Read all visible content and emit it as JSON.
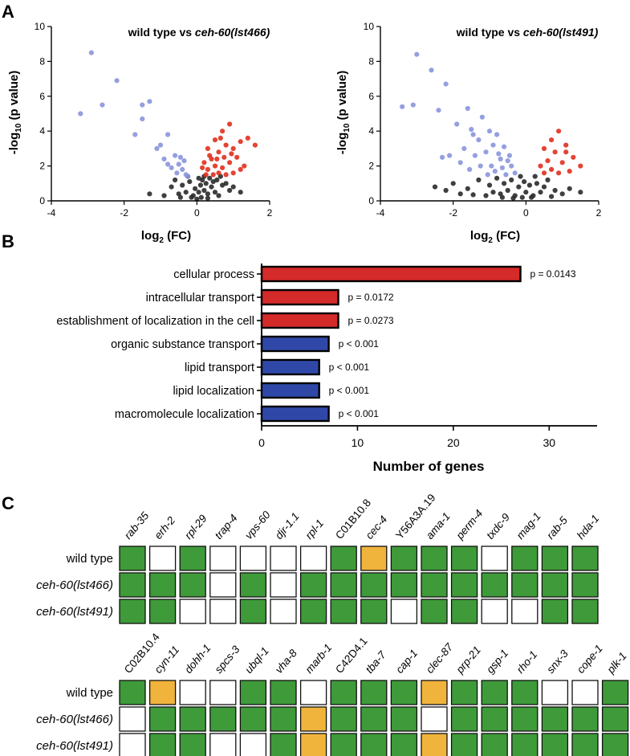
{
  "panels": {
    "a": "A",
    "b": "B",
    "c": "C"
  },
  "colors": {
    "up": "#e0301e",
    "down": "#8a95dd",
    "ns": "#2a2a2a",
    "bar_red": "#d42a2a",
    "bar_blue": "#2f48a8",
    "grid_green": "#3f9a3a",
    "grid_orange": "#f0b43c",
    "grid_white": "#ffffff"
  },
  "chart_data": [
    {
      "type": "scatter",
      "id": "volcano_lst466",
      "title_prefix": "wild type vs ",
      "title_italic": "ceh-60(lst466)",
      "xlabel_base": "log",
      "xlabel_sub": "2",
      "xlabel_rest": " (FC)",
      "ylabel_base": "-log",
      "ylabel_sub": "10",
      "ylabel_rest": " (p value)",
      "xlim": [
        -4,
        2
      ],
      "ylim": [
        0,
        10
      ],
      "xticks": [
        -4,
        -2,
        0,
        2
      ],
      "yticks": [
        0,
        2,
        4,
        6,
        8,
        10
      ],
      "highlight_down": [
        [
          -2.9,
          8.5
        ],
        [
          -2.2,
          6.9
        ],
        [
          -3.2,
          5.0
        ],
        [
          -2.6,
          5.5
        ],
        [
          -1.5,
          5.5
        ],
        [
          -1.3,
          5.7
        ],
        [
          -1.7,
          3.8
        ],
        [
          -1.5,
          4.7
        ],
        [
          -1.0,
          3.2
        ],
        [
          -0.8,
          3.8
        ],
        [
          -1.1,
          3.0
        ],
        [
          -0.9,
          2.4
        ],
        [
          -0.6,
          2.6
        ],
        [
          -0.7,
          1.9
        ],
        [
          -0.5,
          2.1
        ],
        [
          -0.4,
          1.8
        ],
        [
          -0.35,
          2.3
        ],
        [
          -0.55,
          1.6
        ],
        [
          -0.3,
          1.5
        ],
        [
          -0.45,
          2.5
        ],
        [
          -0.8,
          2.1
        ],
        [
          -0.25,
          1.4
        ]
      ],
      "highlight_up": [
        [
          0.9,
          4.4
        ],
        [
          0.7,
          4.0
        ],
        [
          1.4,
          3.6
        ],
        [
          1.6,
          3.2
        ],
        [
          1.2,
          3.4
        ],
        [
          0.5,
          3.5
        ],
        [
          0.8,
          3.2
        ],
        [
          1.0,
          3.0
        ],
        [
          0.3,
          3.0
        ],
        [
          0.6,
          2.8
        ],
        [
          1.1,
          2.5
        ],
        [
          0.4,
          2.4
        ],
        [
          0.9,
          2.2
        ],
        [
          0.2,
          2.2
        ],
        [
          0.5,
          2.0
        ],
        [
          0.7,
          1.9
        ],
        [
          1.3,
          2.0
        ],
        [
          0.3,
          1.8
        ],
        [
          0.6,
          1.6
        ],
        [
          0.8,
          1.5
        ],
        [
          0.45,
          1.5
        ],
        [
          1.0,
          1.6
        ],
        [
          0.25,
          1.5
        ],
        [
          0.55,
          2.4
        ],
        [
          0.95,
          2.7
        ],
        [
          0.35,
          2.6
        ],
        [
          1.2,
          1.8
        ],
        [
          0.65,
          3.6
        ],
        [
          0.15,
          1.9
        ],
        [
          0.75,
          2.5
        ]
      ],
      "not_significant": [
        [
          -1.3,
          0.4
        ],
        [
          -0.6,
          1.2
        ],
        [
          -0.4,
          0.9
        ],
        [
          -0.3,
          0.5
        ],
        [
          -0.2,
          1.1
        ],
        [
          -0.1,
          0.3
        ],
        [
          -0.05,
          0.7
        ],
        [
          0.0,
          0.1
        ],
        [
          0.05,
          0.5
        ],
        [
          0.1,
          0.9
        ],
        [
          0.15,
          1.2
        ],
        [
          0.2,
          0.6
        ],
        [
          0.25,
          1.0
        ],
        [
          0.3,
          0.4
        ],
        [
          0.35,
          1.3
        ],
        [
          0.4,
          0.8
        ],
        [
          0.45,
          1.1
        ],
        [
          0.5,
          0.5
        ],
        [
          0.55,
          1.2
        ],
        [
          0.6,
          0.3
        ],
        [
          0.7,
          0.9
        ],
        [
          0.8,
          1.0
        ],
        [
          0.9,
          0.6
        ],
        [
          1.0,
          0.8
        ],
        [
          -0.5,
          0.4
        ],
        [
          -0.45,
          0.2
        ],
        [
          -0.15,
          0.2
        ],
        [
          0.12,
          0.2
        ],
        [
          0.3,
          0.15
        ],
        [
          0.05,
          1.3
        ],
        [
          -0.25,
          1.4
        ],
        [
          -0.7,
          0.8
        ],
        [
          1.2,
          0.5
        ],
        [
          -0.9,
          0.3
        ],
        [
          0.65,
          1.4
        ],
        [
          0.2,
          1.4
        ]
      ]
    },
    {
      "type": "scatter",
      "id": "volcano_lst491",
      "title_prefix": "wild type vs ",
      "title_italic": "ceh-60(lst491)",
      "xlabel_base": "log",
      "xlabel_sub": "2",
      "xlabel_rest": " (FC)",
      "ylabel_base": "-log",
      "ylabel_sub": "10",
      "ylabel_rest": " (p value)",
      "xlim": [
        -4,
        2
      ],
      "ylim": [
        0,
        10
      ],
      "xticks": [
        -4,
        -2,
        0,
        2
      ],
      "yticks": [
        0,
        2,
        4,
        6,
        8,
        10
      ],
      "highlight_down": [
        [
          -3.0,
          8.4
        ],
        [
          -2.6,
          7.5
        ],
        [
          -2.2,
          6.7
        ],
        [
          -3.4,
          5.4
        ],
        [
          -3.1,
          5.5
        ],
        [
          -2.4,
          5.2
        ],
        [
          -1.6,
          5.3
        ],
        [
          -1.9,
          4.4
        ],
        [
          -1.2,
          4.8
        ],
        [
          -1.5,
          4.1
        ],
        [
          -1.0,
          4.0
        ],
        [
          -0.8,
          3.8
        ],
        [
          -1.3,
          3.5
        ],
        [
          -0.9,
          3.2
        ],
        [
          -1.7,
          3.0
        ],
        [
          -0.6,
          3.1
        ],
        [
          -2.1,
          2.6
        ],
        [
          -1.4,
          2.6
        ],
        [
          -1.1,
          2.8
        ],
        [
          -0.7,
          2.4
        ],
        [
          -0.5,
          2.3
        ],
        [
          -1.8,
          2.2
        ],
        [
          -0.95,
          2.0
        ],
        [
          -0.4,
          2.0
        ],
        [
          -1.25,
          2.0
        ],
        [
          -0.65,
          1.9
        ],
        [
          -0.85,
          1.7
        ],
        [
          -1.55,
          1.8
        ],
        [
          -0.3,
          1.6
        ],
        [
          -1.05,
          1.5
        ],
        [
          -0.55,
          1.5
        ],
        [
          -2.3,
          2.5
        ],
        [
          -0.75,
          2.7
        ],
        [
          -1.45,
          3.8
        ],
        [
          -0.45,
          2.6
        ]
      ],
      "highlight_up": [
        [
          0.9,
          4.0
        ],
        [
          0.7,
          3.5
        ],
        [
          1.1,
          3.2
        ],
        [
          0.5,
          3.0
        ],
        [
          0.8,
          2.8
        ],
        [
          1.3,
          2.5
        ],
        [
          0.6,
          2.3
        ],
        [
          1.0,
          2.2
        ],
        [
          0.4,
          2.0
        ],
        [
          1.5,
          2.0
        ],
        [
          0.7,
          1.8
        ],
        [
          1.2,
          1.7
        ],
        [
          0.9,
          1.6
        ],
        [
          0.5,
          1.6
        ],
        [
          1.1,
          2.8
        ]
      ],
      "not_significant": [
        [
          -2.5,
          0.8
        ],
        [
          -2.0,
          1.0
        ],
        [
          -1.6,
          0.7
        ],
        [
          -1.3,
          1.2
        ],
        [
          -1.0,
          0.9
        ],
        [
          -0.9,
          0.5
        ],
        [
          -0.8,
          1.3
        ],
        [
          -0.7,
          0.4
        ],
        [
          -0.6,
          1.0
        ],
        [
          -0.5,
          0.6
        ],
        [
          -0.4,
          1.2
        ],
        [
          -0.3,
          0.3
        ],
        [
          -0.2,
          0.8
        ],
        [
          -0.1,
          0.2
        ],
        [
          0.0,
          0.5
        ],
        [
          0.1,
          0.9
        ],
        [
          0.2,
          0.3
        ],
        [
          0.3,
          1.0
        ],
        [
          0.4,
          0.5
        ],
        [
          0.5,
          0.8
        ],
        [
          0.6,
          1.2
        ],
        [
          0.8,
          0.6
        ],
        [
          1.0,
          0.4
        ],
        [
          1.2,
          0.7
        ],
        [
          -1.8,
          0.4
        ],
        [
          -1.1,
          0.3
        ],
        [
          -0.35,
          0.15
        ],
        [
          0.15,
          0.2
        ],
        [
          -0.65,
          0.2
        ],
        [
          -1.45,
          0.35
        ],
        [
          -2.2,
          0.6
        ],
        [
          0.7,
          0.25
        ],
        [
          -0.15,
          1.4
        ],
        [
          0.25,
          1.4
        ],
        [
          -0.05,
          1.1
        ],
        [
          1.5,
          0.5
        ]
      ]
    },
    {
      "type": "bar",
      "id": "go_terms",
      "orientation": "horizontal",
      "categories": [
        "cellular process",
        "intracellular transport",
        "establishment of localization in the cell",
        "organic substance transport",
        "lipid transport",
        "lipid localization",
        "macromolecule localization"
      ],
      "values": [
        27,
        8,
        8,
        7,
        6,
        6,
        7
      ],
      "groups": [
        "up",
        "up",
        "up",
        "down",
        "down",
        "down",
        "down"
      ],
      "pvalues": [
        "p = 0.0143",
        "p = 0.0172",
        "p = 0.0273",
        "p < 0.001",
        "p < 0.001",
        "p < 0.001",
        "p < 0.001"
      ],
      "xlabel": "Number of genes",
      "xlim": [
        0,
        35
      ],
      "xticks": [
        0,
        10,
        20,
        30
      ]
    }
  ],
  "heatmap": {
    "row_labels": [
      "wild type",
      "ceh-60(lst466)",
      "ceh-60(lst491)"
    ],
    "row_italic": [
      false,
      true,
      true
    ],
    "blocks": [
      {
        "genes": [
          "rab-35",
          "erh-2",
          "rpl-29",
          "trap-4",
          "vps-60",
          "djr-1.1",
          "rpl-1",
          "C01B10.8",
          "cec-4",
          "Y56A3A.19",
          "ama-1",
          "perm-4",
          "txdc-9",
          "mag-1",
          "rab-5",
          "hda-1"
        ],
        "gene_italic": [
          true,
          true,
          true,
          true,
          true,
          true,
          true,
          false,
          true,
          false,
          true,
          true,
          true,
          true,
          true,
          true
        ],
        "cells": [
          [
            "G",
            "W",
            "G",
            "W",
            "W",
            "W",
            "W",
            "G",
            "O",
            "G",
            "G",
            "G",
            "W",
            "G",
            "G",
            "G"
          ],
          [
            "G",
            "G",
            "G",
            "W",
            "G",
            "W",
            "G",
            "G",
            "G",
            "G",
            "G",
            "G",
            "G",
            "G",
            "G",
            "G"
          ],
          [
            "G",
            "G",
            "W",
            "W",
            "G",
            "W",
            "G",
            "G",
            "G",
            "W",
            "G",
            "G",
            "W",
            "W",
            "G",
            "G"
          ]
        ]
      },
      {
        "genes": [
          "C02B10.4",
          "cyn-11",
          "dohh-1",
          "spcs-3",
          "ubql-1",
          "vha-8",
          "marb-1",
          "C42D4.1",
          "tba-7",
          "cap-1",
          "clec-87",
          "prp-21",
          "gsp-1",
          "rho-1",
          "snx-3",
          "cope-1",
          "plk-1"
        ],
        "gene_italic": [
          false,
          true,
          true,
          true,
          true,
          true,
          true,
          false,
          true,
          true,
          true,
          true,
          true,
          true,
          true,
          true,
          true
        ],
        "cells": [
          [
            "G",
            "O",
            "W",
            "W",
            "G",
            "G",
            "W",
            "G",
            "G",
            "G",
            "O",
            "G",
            "G",
            "G",
            "W",
            "W",
            "G"
          ],
          [
            "W",
            "G",
            "G",
            "G",
            "G",
            "G",
            "O",
            "G",
            "G",
            "G",
            "W",
            "G",
            "G",
            "G",
            "G",
            "G",
            "G"
          ],
          [
            "W",
            "G",
            "G",
            "W",
            "W",
            "G",
            "O",
            "G",
            "G",
            "G",
            "O",
            "G",
            "G",
            "G",
            "G",
            "G",
            "G"
          ]
        ]
      }
    ]
  }
}
